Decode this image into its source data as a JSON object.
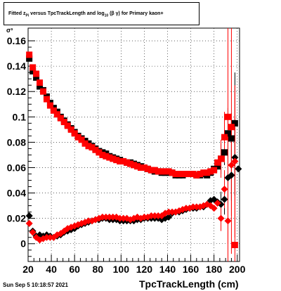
{
  "title": {
    "text_main": "Fitted  z",
    "sub": "Pi",
    "text_rest": "  versus TpcTrackLength and log",
    "sub2": "10",
    "text_tail": " (β  γ) for Primary kaon+"
  },
  "footer": {
    "timestamp": "Sun Sep  5 10:18:57 2021"
  },
  "chart_data": {
    "type": "scatter",
    "xlabel": "TpcTrackLength (cm)",
    "ylabel": "σ³",
    "xlim": [
      20,
      202
    ],
    "ylim": [
      -0.014,
      0.17
    ],
    "grid": true,
    "xticks": [
      20,
      40,
      60,
      80,
      100,
      120,
      140,
      160,
      180,
      200
    ],
    "xtick_labels": [
      "20",
      "40",
      "60",
      "80",
      "100",
      "120",
      "140",
      "160",
      "180",
      "200"
    ],
    "yticks": [
      0,
      0.02,
      0.04,
      0.06,
      0.08,
      0.1,
      0.12,
      0.14,
      0.16
    ],
    "ytick_labels": [
      "0",
      "0.02",
      "0.04",
      "0.06",
      "0.08",
      "0.1",
      "0.12",
      "0.14",
      "0.16"
    ],
    "colors": {
      "black": "#000000",
      "red": "#ff0000"
    },
    "series": [
      {
        "color": "#000000",
        "marker": "square",
        "points": [
          [
            21,
            0.146
          ],
          [
            24,
            0.136
          ],
          [
            27,
            0.131
          ],
          [
            30,
            0.124
          ],
          [
            33,
            0.121
          ],
          [
            36,
            0.116
          ],
          [
            39,
            0.111
          ],
          [
            42,
            0.107
          ],
          [
            45,
            0.104
          ],
          [
            48,
            0.1
          ],
          [
            51,
            0.097
          ],
          [
            54,
            0.094
          ],
          [
            57,
            0.091
          ],
          [
            60,
            0.088
          ],
          [
            63,
            0.085
          ],
          [
            66,
            0.083
          ],
          [
            69,
            0.081
          ],
          [
            72,
            0.079
          ],
          [
            75,
            0.077
          ],
          [
            78,
            0.075
          ],
          [
            81,
            0.073
          ],
          [
            84,
            0.072
          ],
          [
            87,
            0.071
          ],
          [
            90,
            0.069
          ],
          [
            93,
            0.068
          ],
          [
            96,
            0.067
          ],
          [
            99,
            0.066
          ],
          [
            102,
            0.065
          ],
          [
            105,
            0.064
          ],
          [
            108,
            0.064
          ],
          [
            111,
            0.063
          ],
          [
            114,
            0.062
          ],
          [
            117,
            0.061
          ],
          [
            120,
            0.06
          ],
          [
            123,
            0.059
          ],
          [
            126,
            0.058
          ],
          [
            129,
            0.057
          ],
          [
            132,
            0.057
          ],
          [
            135,
            0.056
          ],
          [
            138,
            0.056
          ],
          [
            141,
            0.056
          ],
          [
            144,
            0.056
          ],
          [
            147,
            0.054
          ],
          [
            150,
            0.054
          ],
          [
            153,
            0.054
          ],
          [
            156,
            0.055
          ],
          [
            159,
            0.055
          ],
          [
            162,
            0.055
          ],
          [
            165,
            0.054
          ],
          [
            168,
            0.054
          ],
          [
            171,
            0.055
          ],
          [
            174,
            0.054
          ],
          [
            177,
            0.056
          ],
          [
            180,
            0.059
          ],
          [
            183,
            0.061
          ],
          [
            186,
            0.067
          ],
          [
            189,
            0.072
          ],
          [
            192,
            0.087
          ],
          [
            195,
            0.083
          ],
          [
            198,
            0.095
          ]
        ],
        "errors": [
          [
            186,
            0.012
          ],
          [
            189,
            0.01
          ],
          [
            192,
            0.02
          ],
          [
            195,
            0.02
          ],
          [
            198,
            0.04
          ]
        ]
      },
      {
        "color": "#ff0000",
        "marker": "square",
        "points": [
          [
            21,
            0.149
          ],
          [
            24,
            0.139
          ],
          [
            27,
            0.134
          ],
          [
            30,
            0.127
          ],
          [
            33,
            0.12
          ],
          [
            36,
            0.114
          ],
          [
            39,
            0.109
          ],
          [
            42,
            0.105
          ],
          [
            45,
            0.102
          ],
          [
            48,
            0.099
          ],
          [
            51,
            0.096
          ],
          [
            54,
            0.093
          ],
          [
            57,
            0.09
          ],
          [
            60,
            0.087
          ],
          [
            63,
            0.084
          ],
          [
            66,
            0.082
          ],
          [
            69,
            0.079
          ],
          [
            72,
            0.077
          ],
          [
            75,
            0.076
          ],
          [
            78,
            0.074
          ],
          [
            81,
            0.072
          ],
          [
            84,
            0.07
          ],
          [
            87,
            0.069
          ],
          [
            90,
            0.068
          ],
          [
            93,
            0.067
          ],
          [
            96,
            0.066
          ],
          [
            99,
            0.065
          ],
          [
            102,
            0.065
          ],
          [
            105,
            0.064
          ],
          [
            108,
            0.063
          ],
          [
            111,
            0.062
          ],
          [
            114,
            0.061
          ],
          [
            117,
            0.06
          ],
          [
            120,
            0.06
          ],
          [
            123,
            0.059
          ],
          [
            126,
            0.058
          ],
          [
            129,
            0.058
          ],
          [
            132,
            0.057
          ],
          [
            135,
            0.057
          ],
          [
            138,
            0.057
          ],
          [
            141,
            0.057
          ],
          [
            144,
            0.056
          ],
          [
            147,
            0.055
          ],
          [
            150,
            0.055
          ],
          [
            153,
            0.055
          ],
          [
            156,
            0.055
          ],
          [
            159,
            0.055
          ],
          [
            162,
            0.055
          ],
          [
            165,
            0.054
          ],
          [
            168,
            0.055
          ],
          [
            171,
            0.056
          ],
          [
            174,
            0.056
          ],
          [
            177,
            0.057
          ],
          [
            180,
            0.058
          ],
          [
            183,
            0.064
          ],
          [
            186,
            0.067
          ],
          [
            189,
            0.084
          ],
          [
            192,
            0.1
          ],
          [
            195,
            0.092
          ],
          [
            198,
            -0.001
          ]
        ],
        "errors": [
          [
            186,
            0.015
          ],
          [
            189,
            0.02
          ],
          [
            192,
            0.1
          ],
          [
            195,
            0.1
          ],
          [
            198,
            0.12
          ]
        ]
      },
      {
        "color": "#000000",
        "marker": "diamond",
        "points": [
          [
            21,
            0.022
          ],
          [
            24,
            0.01
          ],
          [
            27,
            0.006
          ],
          [
            30,
            0.007
          ],
          [
            33,
            0.006
          ],
          [
            36,
            0.007
          ],
          [
            39,
            0.006
          ],
          [
            42,
            0.005
          ],
          [
            45,
            0.006
          ],
          [
            48,
            0.007
          ],
          [
            51,
            0.009
          ],
          [
            54,
            0.01
          ],
          [
            57,
            0.011
          ],
          [
            60,
            0.012
          ],
          [
            63,
            0.014
          ],
          [
            66,
            0.015
          ],
          [
            69,
            0.016
          ],
          [
            72,
            0.017
          ],
          [
            75,
            0.018
          ],
          [
            78,
            0.019
          ],
          [
            81,
            0.019
          ],
          [
            84,
            0.02
          ],
          [
            87,
            0.02
          ],
          [
            90,
            0.019
          ],
          [
            93,
            0.019
          ],
          [
            96,
            0.019
          ],
          [
            99,
            0.018
          ],
          [
            102,
            0.018
          ],
          [
            105,
            0.018
          ],
          [
            108,
            0.018
          ],
          [
            111,
            0.018
          ],
          [
            114,
            0.019
          ],
          [
            117,
            0.019
          ],
          [
            120,
            0.02
          ],
          [
            123,
            0.02
          ],
          [
            126,
            0.02
          ],
          [
            129,
            0.02
          ],
          [
            132,
            0.02
          ],
          [
            135,
            0.019
          ],
          [
            138,
            0.02
          ],
          [
            141,
            0.021
          ],
          [
            144,
            0.024
          ],
          [
            147,
            0.025
          ],
          [
            150,
            0.025
          ],
          [
            153,
            0.026
          ],
          [
            156,
            0.027
          ],
          [
            159,
            0.028
          ],
          [
            162,
            0.028
          ],
          [
            165,
            0.028
          ],
          [
            168,
            0.029
          ],
          [
            171,
            0.029
          ],
          [
            174,
            0.031
          ],
          [
            177,
            0.034
          ],
          [
            180,
            0.035
          ],
          [
            183,
            0.033
          ],
          [
            186,
            0.031
          ],
          [
            189,
            0.035
          ],
          [
            192,
            0.052
          ],
          [
            195,
            0.054
          ],
          [
            198,
            0.068
          ],
          [
            201,
            0.059
          ]
        ],
        "errors": [
          [
            186,
            0.01
          ],
          [
            189,
            0.012
          ],
          [
            192,
            0.02
          ],
          [
            195,
            0.02
          ],
          [
            198,
            0.03
          ]
        ]
      },
      {
        "color": "#ff0000",
        "marker": "diamond",
        "points": [
          [
            21,
            0.016
          ],
          [
            24,
            0.009
          ],
          [
            27,
            0.005
          ],
          [
            30,
            0.003
          ],
          [
            33,
            0.004
          ],
          [
            36,
            0.005
          ],
          [
            39,
            0.005
          ],
          [
            42,
            0.005
          ],
          [
            45,
            0.007
          ],
          [
            48,
            0.008
          ],
          [
            51,
            0.01
          ],
          [
            54,
            0.012
          ],
          [
            57,
            0.013
          ],
          [
            60,
            0.014
          ],
          [
            63,
            0.015
          ],
          [
            66,
            0.016
          ],
          [
            69,
            0.017
          ],
          [
            72,
            0.018
          ],
          [
            75,
            0.018
          ],
          [
            78,
            0.019
          ],
          [
            81,
            0.02
          ],
          [
            84,
            0.021
          ],
          [
            87,
            0.021
          ],
          [
            90,
            0.021
          ],
          [
            93,
            0.021
          ],
          [
            96,
            0.021
          ],
          [
            99,
            0.02
          ],
          [
            102,
            0.02
          ],
          [
            105,
            0.02
          ],
          [
            108,
            0.019
          ],
          [
            111,
            0.02
          ],
          [
            114,
            0.021
          ],
          [
            117,
            0.02
          ],
          [
            120,
            0.021
          ],
          [
            123,
            0.021
          ],
          [
            126,
            0.022
          ],
          [
            129,
            0.022
          ],
          [
            132,
            0.022
          ],
          [
            135,
            0.022
          ],
          [
            138,
            0.024
          ],
          [
            141,
            0.025
          ],
          [
            144,
            0.025
          ],
          [
            147,
            0.025
          ],
          [
            150,
            0.026
          ],
          [
            153,
            0.027
          ],
          [
            156,
            0.028
          ],
          [
            159,
            0.028
          ],
          [
            162,
            0.029
          ],
          [
            165,
            0.029
          ],
          [
            168,
            0.029
          ],
          [
            171,
            0.03
          ],
          [
            174,
            0.031
          ],
          [
            177,
            0.03
          ],
          [
            180,
            0.028
          ],
          [
            183,
            0.032
          ],
          [
            186,
            0.02
          ],
          [
            189,
            0.043
          ],
          [
            192,
            0.018
          ],
          [
            195,
            0.062
          ],
          [
            198,
            0.065
          ]
        ],
        "errors": [
          [
            186,
            0.01
          ],
          [
            189,
            0.015
          ],
          [
            192,
            0.06
          ],
          [
            195,
            0.04
          ],
          [
            198,
            0.06
          ]
        ]
      }
    ]
  }
}
